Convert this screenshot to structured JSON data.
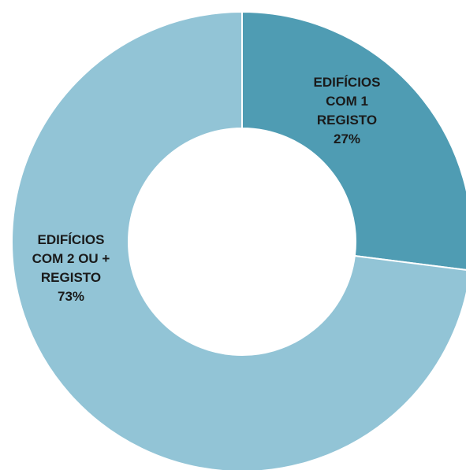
{
  "chart_data": {
    "type": "pie",
    "variant": "donut",
    "title": "",
    "legend": "none",
    "slices": [
      {
        "label_lines": [
          "EDIFÍCIOS",
          "COM 1",
          "REGISTO"
        ],
        "percent_label": "27%",
        "value": 27,
        "color": "#4f9cb3"
      },
      {
        "label_lines": [
          "EDIFÍCIOS",
          "COM 2 OU +",
          "REGISTO"
        ],
        "percent_label": "73%",
        "value": 73,
        "color": "#92c4d6"
      }
    ],
    "start_angle": "12 o'clock",
    "direction": "clockwise"
  }
}
